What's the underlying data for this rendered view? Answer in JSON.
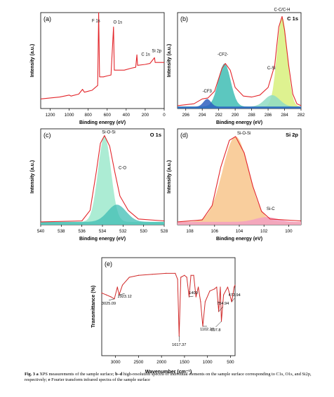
{
  "colors": {
    "red": "#e3262b",
    "teal": "#3fbdb4",
    "blue": "#2e5fbe",
    "yellowgreen": "#d8f07c",
    "paleteal": "#8fdcc4",
    "mint": "#9ee9cc",
    "peach": "#f8c58c",
    "pink": "#f2a0c2"
  },
  "caption": {
    "fig_label": "Fig. 3",
    "a_letter": "a",
    "part_a": " XPS measurements of the sample surface; ",
    "bd_letters": "b–d",
    "part_bd": " high-resolution spectra of individual elements on the sample surface corresponding to C1s, O1s, and Si2p, respectively; ",
    "e_letter": "e",
    "part_e": " Fourier transform infrared spectra of the sample surface"
  },
  "chart_data": [
    {
      "panel": "(a)",
      "type": "line",
      "xlabel": "Binding energy (eV)",
      "ylabel": "Intensity (a.u.)",
      "x_ticks": [
        "1200",
        "1000",
        "800",
        "600",
        "400",
        "200",
        "0"
      ],
      "xlim": [
        1300,
        0
      ],
      "reversed_x": true,
      "series": [
        {
          "values": [
            [
              1300,
              0.1
            ],
            [
              1200,
              0.11
            ],
            [
              1100,
              0.12
            ],
            [
              1000,
              0.14
            ],
            [
              980,
              0.13
            ],
            [
              900,
              0.15
            ],
            [
              860,
              0.2
            ],
            [
              840,
              0.17
            ],
            [
              800,
              0.18
            ],
            [
              760,
              0.19
            ],
            [
              700,
              0.24
            ],
            [
              690,
              1.0
            ],
            [
              680,
              0.33
            ],
            [
              640,
              0.33
            ],
            [
              600,
              0.34
            ],
            [
              560,
              0.35
            ],
            [
              533,
              0.85
            ],
            [
              525,
              0.4
            ],
            [
              470,
              0.4
            ],
            [
              420,
              0.4
            ],
            [
              350,
              0.42
            ],
            [
              300,
              0.43
            ],
            [
              287,
              0.56
            ],
            [
              280,
              0.45
            ],
            [
              200,
              0.46
            ],
            [
              150,
              0.47
            ],
            [
              102,
              0.53
            ],
            [
              95,
              0.48
            ],
            [
              20,
              0.48
            ],
            [
              0,
              0.48
            ]
          ]
        }
      ],
      "annotations": [
        {
          "label": "F 1s",
          "x": 688
        },
        {
          "label": "O 1s",
          "x": 533
        },
        {
          "label": "C 1s",
          "x": 285
        },
        {
          "label": "Si 2p",
          "x": 102
        }
      ]
    },
    {
      "panel": "(b)",
      "title": "C 1s",
      "type": "line",
      "xlabel": "Binding energy (eV)",
      "ylabel": "Intensity (a.u.)",
      "x_ticks": [
        "296",
        "294",
        "292",
        "290",
        "288",
        "286",
        "284",
        "282"
      ],
      "xlim": [
        297,
        282
      ],
      "reversed_x": true,
      "series": [
        {
          "values": [
            [
              297,
              0.03
            ],
            [
              295,
              0.05
            ],
            [
              294,
              0.1
            ],
            [
              293.3,
              0.11
            ],
            [
              292.5,
              0.18
            ],
            [
              291.6,
              0.42
            ],
            [
              291.2,
              0.47
            ],
            [
              290.6,
              0.4
            ],
            [
              290,
              0.22
            ],
            [
              289,
              0.13
            ],
            [
              288,
              0.12
            ],
            [
              287,
              0.14
            ],
            [
              286,
              0.22
            ],
            [
              285.2,
              0.45
            ],
            [
              284.7,
              0.85
            ],
            [
              284.3,
              0.96
            ],
            [
              284,
              0.82
            ],
            [
              283.5,
              0.45
            ],
            [
              283,
              0.15
            ],
            [
              282.5,
              0.05
            ],
            [
              282,
              0.03
            ]
          ]
        }
      ],
      "annotations": [
        {
          "label": "-CF3",
          "x": 293.4
        },
        {
          "label": "-CF2-",
          "x": 291.5
        },
        {
          "label": "C-Si",
          "x": 285.6
        },
        {
          "label": "C-C/C-H",
          "x": 284.3
        }
      ]
    },
    {
      "panel": "(c)",
      "title": "O 1s",
      "type": "line",
      "xlabel": "Binding energy (eV)",
      "ylabel": "Intensity (a.u.)",
      "x_ticks": [
        "540",
        "538",
        "536",
        "534",
        "532",
        "530",
        "528"
      ],
      "xlim": [
        540,
        528
      ],
      "reversed_x": true,
      "series": [
        {
          "values": [
            [
              540,
              0.03
            ],
            [
              536,
              0.04
            ],
            [
              535.2,
              0.15
            ],
            [
              534.6,
              0.55
            ],
            [
              534.2,
              0.85
            ],
            [
              533.8,
              0.93
            ],
            [
              533.3,
              0.82
            ],
            [
              532.8,
              0.55
            ],
            [
              532.3,
              0.3
            ],
            [
              531.5,
              0.15
            ],
            [
              530.5,
              0.06
            ],
            [
              528,
              0.04
            ]
          ]
        }
      ],
      "annotations": [
        {
          "label": "Si-O-Si",
          "x": 533.8
        },
        {
          "label": "C-O",
          "x": 532.6
        }
      ]
    },
    {
      "panel": "(d)",
      "title": "Si 2p",
      "type": "line",
      "xlabel": "Binding energy (eV)",
      "ylabel": "Intensity (a.u.)",
      "x_ticks": [
        "108",
        "106",
        "104",
        "102",
        "100"
      ],
      "xlim": [
        109,
        99
      ],
      "reversed_x": true,
      "series": [
        {
          "values": [
            [
              109,
              0.03
            ],
            [
              107,
              0.05
            ],
            [
              106.2,
              0.2
            ],
            [
              105.5,
              0.6
            ],
            [
              104.8,
              0.88
            ],
            [
              104.3,
              0.92
            ],
            [
              103.6,
              0.75
            ],
            [
              102.9,
              0.4
            ],
            [
              102.2,
              0.14
            ],
            [
              101.5,
              0.06
            ],
            [
              99,
              0.04
            ]
          ]
        }
      ],
      "annotations": [
        {
          "label": "Si-O-Si",
          "x": 104.3
        },
        {
          "label": "Si-C",
          "x": 101.8
        }
      ]
    },
    {
      "panel": "(e)",
      "type": "line",
      "xlabel": "Wavenumber (cm⁻¹)",
      "ylabel": "Transmittance (%)",
      "x_ticks": [
        "3000",
        "2500",
        "2000",
        "1500",
        "1000",
        "500"
      ],
      "xlim": [
        3300,
        400
      ],
      "reversed_x": true,
      "series": [
        {
          "values": [
            [
              3300,
              0.64
            ],
            [
              3200,
              0.62
            ],
            [
              3100,
              0.6
            ],
            [
              3025,
              0.58
            ],
            [
              2960,
              0.7
            ],
            [
              2923,
              0.62
            ],
            [
              2850,
              0.72
            ],
            [
              2700,
              0.8
            ],
            [
              2500,
              0.82
            ],
            [
              2200,
              0.83
            ],
            [
              1900,
              0.84
            ],
            [
              1700,
              0.84
            ],
            [
              1650,
              0.78
            ],
            [
              1617,
              0.2
            ],
            [
              1580,
              0.8
            ],
            [
              1500,
              0.82
            ],
            [
              1450,
              0.8
            ],
            [
              1400,
              0.6
            ],
            [
              1360,
              0.82
            ],
            [
              1300,
              0.82
            ],
            [
              1250,
              0.6
            ],
            [
              1200,
              0.7
            ],
            [
              1150,
              0.55
            ],
            [
              1102,
              0.3
            ],
            [
              1050,
              0.55
            ],
            [
              950,
              0.66
            ],
            [
              850,
              0.68
            ],
            [
              800,
              0.7
            ],
            [
              755,
              0.45
            ],
            [
              720,
              0.7
            ],
            [
              698,
              0.35
            ],
            [
              650,
              0.62
            ],
            [
              560,
              0.7
            ],
            [
              473,
              0.55
            ],
            [
              420,
              0.7
            ],
            [
              400,
              0.72
            ]
          ]
        }
      ],
      "annotations": [
        {
          "label": "3025.09",
          "x": 3025
        },
        {
          "label": "2923.12",
          "x": 2923
        },
        {
          "label": "1617.37",
          "x": 1617
        },
        {
          "label": "1400",
          "x": 1400
        },
        {
          "label": "1102.27",
          "x": 1102
        },
        {
          "label": "754.94",
          "x": 755
        },
        {
          "label": "697.8",
          "x": 698
        },
        {
          "label": "472.94",
          "x": 473
        }
      ]
    }
  ]
}
